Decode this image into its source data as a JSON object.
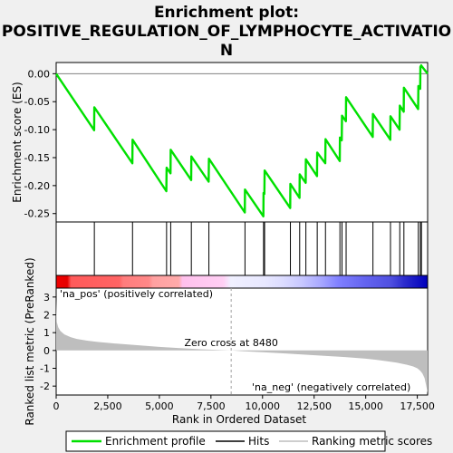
{
  "chart_data": {
    "type": "line",
    "title_line1": "Enrichment plot:",
    "title_line2": "POSITIVE_REGULATION_OF_LYMPHOCYTE_ACTIVATIO",
    "title_line3": "N",
    "xlabel": "Rank in Ordered Dataset",
    "ylabel_top": "Enrichment score (ES)",
    "ylabel_bottom": "Ranked list metric (PreRanked)",
    "xlim": [
      0,
      18000
    ],
    "es_ylim": [
      -0.265,
      0.02
    ],
    "metric_ylim": [
      -2.5,
      3.5
    ],
    "x_ticks": [
      0,
      2500,
      5000,
      7500,
      10000,
      12500,
      15000,
      17500
    ],
    "x_tick_labels": [
      "0",
      "2,500",
      "5,000",
      "7,500",
      "10,000",
      "12,500",
      "15,000",
      "17,500"
    ],
    "es_ticks": [
      0.0,
      -0.05,
      -0.1,
      -0.15,
      -0.2,
      -0.25
    ],
    "es_tick_labels": [
      "0.00",
      "-0.05",
      "-0.10",
      "-0.15",
      "-0.20",
      "-0.25"
    ],
    "metric_ticks": [
      3,
      2,
      1,
      0,
      -1,
      -2
    ],
    "metric_tick_labels": [
      "3",
      "2",
      "1",
      "0",
      "-1",
      "-2"
    ],
    "zero_cross_rank": 8480,
    "zero_cross_label": "Zero cross at 8480",
    "pos_label": "'na_pos' (positively correlated)",
    "neg_label": "'na_neg' (negatively correlated)",
    "hits": [
      1850,
      3700,
      5350,
      5550,
      6550,
      7400,
      9150,
      10050,
      10100,
      11350,
      11800,
      12100,
      12650,
      13050,
      13750,
      13850,
      14050,
      15350,
      16200,
      16650,
      16850,
      17550,
      17650,
      17700
    ],
    "es_profile": {
      "x": [
        0,
        1840,
        1850,
        3690,
        3700,
        5340,
        5350,
        5540,
        5550,
        6540,
        6550,
        7390,
        7400,
        9140,
        9150,
        10040,
        10050,
        10090,
        10100,
        11340,
        11350,
        11790,
        11800,
        12090,
        12100,
        12640,
        12650,
        13040,
        13050,
        13740,
        13750,
        13840,
        13850,
        14040,
        14050,
        15340,
        15350,
        16190,
        16200,
        16640,
        16650,
        16840,
        16850,
        17540,
        17550,
        17640,
        17650,
        17690,
        17700,
        18000
      ],
      "y": [
        0.0,
        -0.101,
        -0.06,
        -0.16,
        -0.118,
        -0.21,
        -0.168,
        -0.178,
        -0.136,
        -0.19,
        -0.148,
        -0.193,
        -0.152,
        -0.248,
        -0.207,
        -0.255,
        -0.213,
        -0.215,
        -0.173,
        -0.24,
        -0.197,
        -0.222,
        -0.18,
        -0.195,
        -0.153,
        -0.183,
        -0.141,
        -0.16,
        -0.117,
        -0.156,
        -0.114,
        -0.119,
        -0.075,
        -0.085,
        -0.042,
        -0.113,
        -0.072,
        -0.118,
        -0.076,
        -0.1,
        -0.057,
        -0.068,
        -0.025,
        -0.063,
        -0.022,
        -0.027,
        0.012,
        0.015,
        0.014,
        0.0
      ]
    },
    "metric_profile": {
      "x": [
        0,
        30,
        100,
        200,
        400,
        700,
        1000,
        1500,
        2000,
        3000,
        4000,
        5000,
        6000,
        7000,
        8000,
        8480,
        9000,
        10000,
        11000,
        12000,
        13000,
        14000,
        15000,
        15500,
        16000,
        16500,
        17000,
        17300,
        17500,
        17650,
        17750,
        17850,
        17900,
        17950,
        18000
      ],
      "y": [
        2.9,
        1.6,
        1.3,
        1.1,
        0.9,
        0.75,
        0.65,
        0.55,
        0.48,
        0.38,
        0.29,
        0.2,
        0.13,
        0.07,
        0.02,
        0.0,
        -0.04,
        -0.1,
        -0.16,
        -0.23,
        -0.3,
        -0.37,
        -0.46,
        -0.52,
        -0.6,
        -0.68,
        -0.8,
        -0.9,
        -1.0,
        -1.15,
        -1.3,
        -1.55,
        -1.8,
        -2.1,
        -2.4
      ]
    },
    "legend": [
      "Enrichment profile",
      "Hits",
      "Ranking metric scores"
    ],
    "colors": {
      "es_line": "#00e000",
      "hits": "#000000",
      "metric_fill": "#bebebe",
      "zero_line": "#a0a0a0",
      "pos_label": "#ff0000",
      "neg_label": "#0000ff"
    }
  }
}
